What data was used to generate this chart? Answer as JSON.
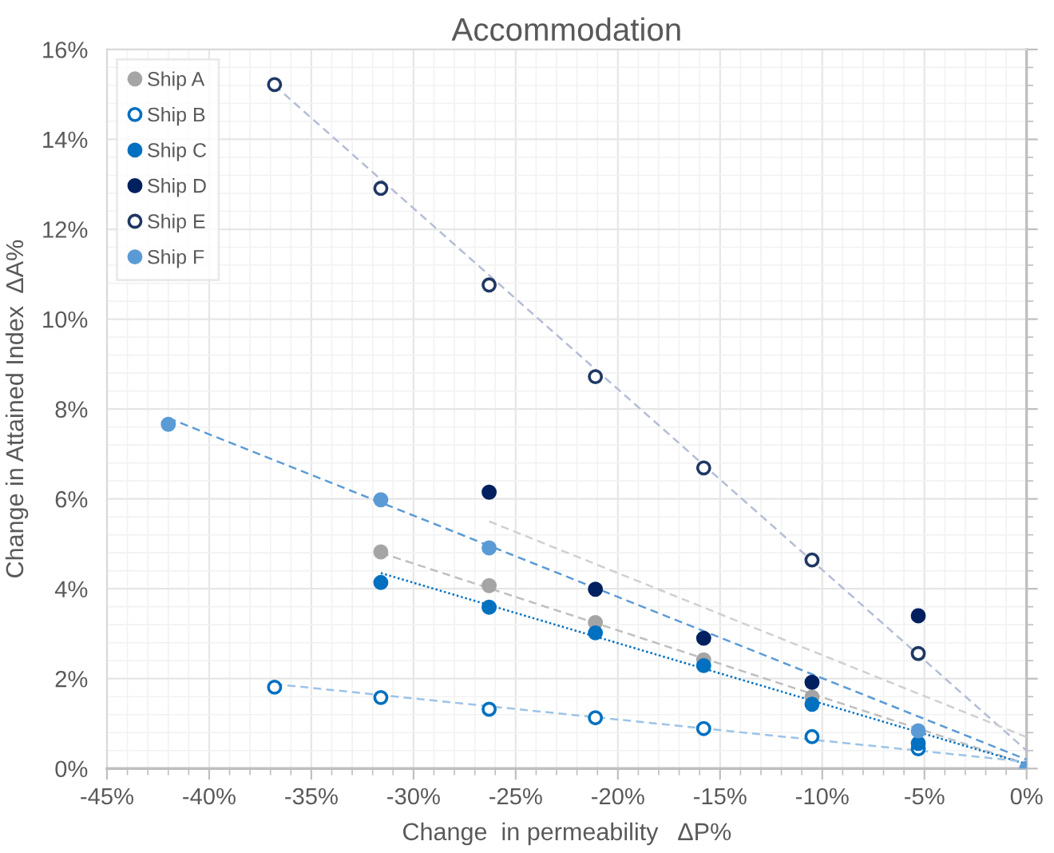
{
  "chart_data": {
    "type": "scatter",
    "title": "Accommodation",
    "xlabel": "Change  in permeability   ΔP%",
    "ylabel": "Change in Attained Index  ΔA%",
    "xlim": [
      -45,
      0
    ],
    "ylim": [
      0,
      16
    ],
    "xticks": [
      {
        "value": -45,
        "label": "-45%"
      },
      {
        "value": -40,
        "label": "-40%"
      },
      {
        "value": -35,
        "label": "-35%"
      },
      {
        "value": -30,
        "label": "-30%"
      },
      {
        "value": -25,
        "label": "-25%"
      },
      {
        "value": -20,
        "label": "-20%"
      },
      {
        "value": -15,
        "label": "-15%"
      },
      {
        "value": -10,
        "label": "-10%"
      },
      {
        "value": -5,
        "label": "-5%"
      },
      {
        "value": 0,
        "label": "0%"
      }
    ],
    "yticks": [
      {
        "value": 0,
        "label": "0%"
      },
      {
        "value": 2,
        "label": "2%"
      },
      {
        "value": 4,
        "label": "4%"
      },
      {
        "value": 6,
        "label": "6%"
      },
      {
        "value": 8,
        "label": "8%"
      },
      {
        "value": 10,
        "label": "10%"
      },
      {
        "value": 12,
        "label": "12%"
      },
      {
        "value": 14,
        "label": "14%"
      },
      {
        "value": 16,
        "label": "16%"
      }
    ],
    "grid": true,
    "legend": "top left",
    "marker": "circle",
    "series": [
      {
        "type": "line",
        "color": "#b4bdd6",
        "line_style": "dashed",
        "marker": "none",
        "x": [
          -36.8,
          0
        ],
        "values": [
          15.2,
          0.4
        ]
      },
      {
        "type": "line",
        "color": "#d0d0d0",
        "line_style": "dashed",
        "marker": "none",
        "x": [
          -26.3,
          0
        ],
        "values": [
          5.5,
          0.7
        ]
      },
      {
        "type": "line",
        "color": "#5b9bd5",
        "line_style": "dashed",
        "marker": "none",
        "x": [
          -42,
          0
        ],
        "values": [
          7.8,
          0.2
        ]
      },
      {
        "type": "line",
        "color": "#bfbfbf",
        "line_style": "dashed",
        "marker": "none",
        "x": [
          -31.6,
          0
        ],
        "values": [
          4.8,
          0.1
        ]
      },
      {
        "type": "line",
        "color": "#0070c0",
        "line_style": "dotted",
        "marker": "none",
        "x": [
          -31.6,
          0
        ],
        "values": [
          4.35,
          0.1
        ]
      },
      {
        "type": "line",
        "color": "#9dc3e6",
        "line_style": "dashed",
        "marker": "none",
        "x": [
          -36.8,
          0
        ],
        "values": [
          1.88,
          0.15
        ]
      },
      {
        "name": "Ship A",
        "color": "#a5a5a5",
        "x": [
          -31.6,
          -26.3,
          -21.1,
          -15.8,
          -10.5
        ],
        "values": [
          4.82,
          4.07,
          3.25,
          2.42,
          1.59
        ]
      },
      {
        "name": "Ship B",
        "color": "#0070c0",
        "x": [
          -36.8,
          -31.6,
          -26.3,
          -21.1,
          -15.8,
          -10.5,
          -5.3
        ],
        "values": [
          1.81,
          1.58,
          1.32,
          1.13,
          0.89,
          0.71,
          0.44
        ]
      },
      {
        "name": "Ship C",
        "color": "#0070c0",
        "x": [
          -31.6,
          -26.3,
          -21.1,
          -15.8,
          -10.5,
          -5.3
        ],
        "values": [
          4.14,
          3.59,
          3.02,
          2.29,
          1.43,
          0.56
        ]
      },
      {
        "name": "Ship D",
        "color": "#002060",
        "x": [
          -26.3,
          -21.1,
          -15.8,
          -10.5,
          -5.3
        ],
        "values": [
          6.15,
          3.99,
          2.9,
          1.92,
          3.4
        ]
      },
      {
        "name": "Ship E",
        "color": "#1f3864",
        "x": [
          -36.8,
          -31.6,
          -26.3,
          -21.1,
          -15.8,
          -10.5,
          -5.3
        ],
        "values": [
          15.22,
          12.91,
          10.76,
          8.72,
          6.69,
          4.64,
          2.56
        ]
      },
      {
        "name": "Ship F",
        "color": "#5b9bd5",
        "x": [
          -42,
          -31.6,
          -26.3,
          -5.3,
          0
        ],
        "values": [
          7.66,
          5.98,
          4.91,
          0.84,
          0
        ]
      }
    ]
  }
}
